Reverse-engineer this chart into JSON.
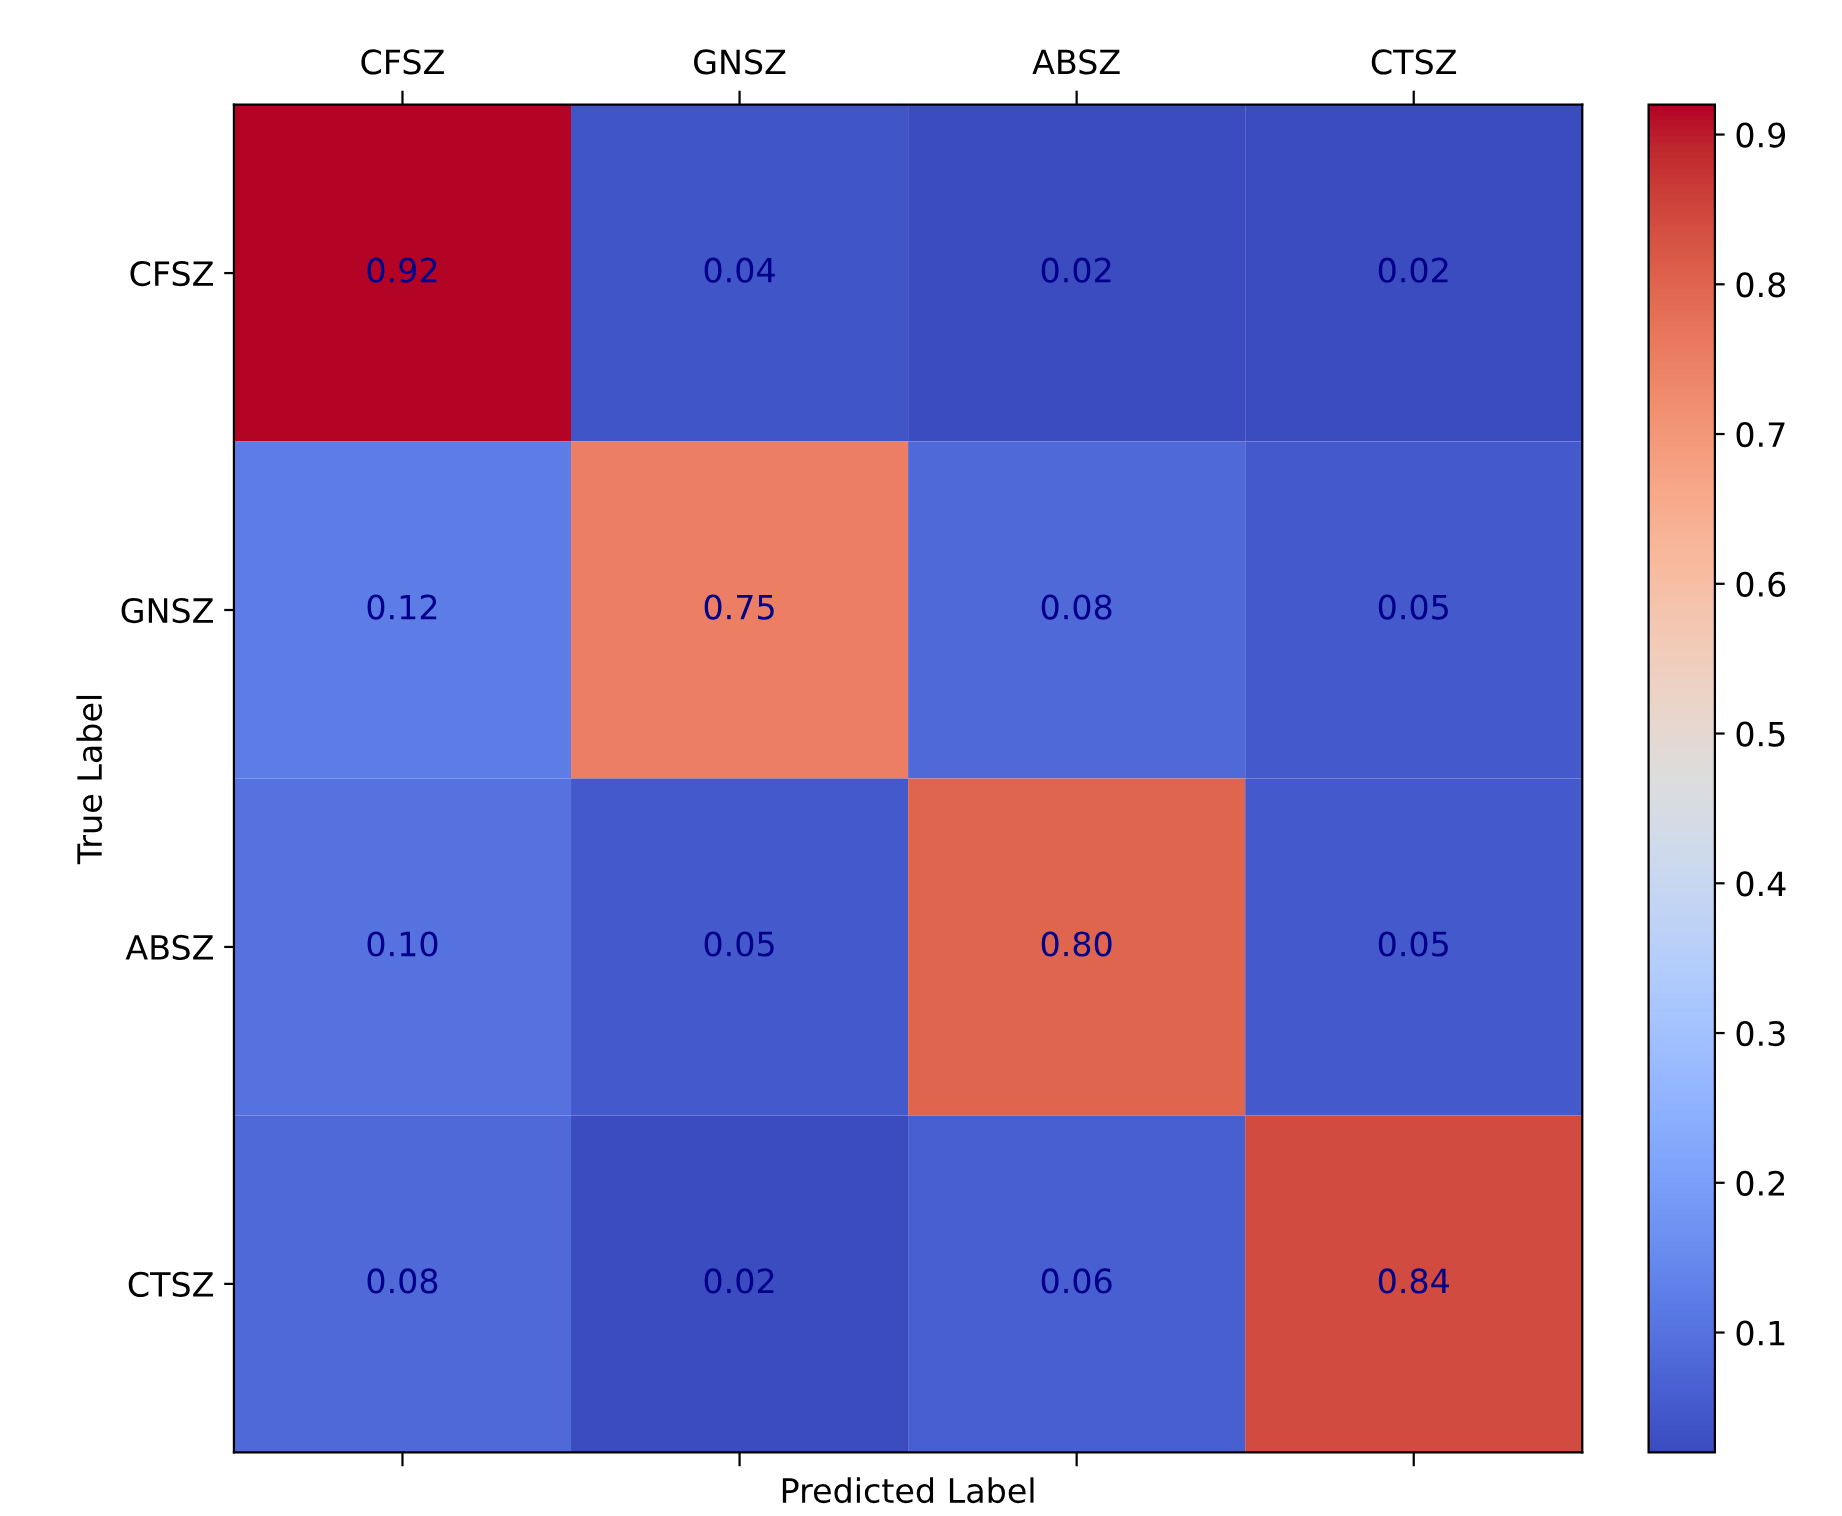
{
  "chart_data": {
    "type": "heatmap",
    "xlabel": "Predicted Label",
    "ylabel": "True Label",
    "categories": [
      "CFSZ",
      "GNSZ",
      "ABSZ",
      "CTSZ"
    ],
    "y_categories": [
      "CFSZ",
      "GNSZ",
      "ABSZ",
      "CTSZ"
    ],
    "cells": [
      [
        0.92,
        0.04,
        0.02,
        0.02
      ],
      [
        0.12,
        0.75,
        0.08,
        0.05
      ],
      [
        0.1,
        0.05,
        0.8,
        0.05
      ],
      [
        0.08,
        0.02,
        0.06,
        0.84
      ]
    ],
    "cell_labels": [
      [
        "0.92",
        "0.04",
        "0.02",
        "0.02"
      ],
      [
        "0.12",
        "0.75",
        "0.08",
        "0.05"
      ],
      [
        "0.10",
        "0.05",
        "0.80",
        "0.05"
      ],
      [
        "0.08",
        "0.02",
        "0.06",
        "0.84"
      ]
    ],
    "clim": [
      0.02,
      0.92
    ],
    "cticks": [
      0.1,
      0.2,
      0.3,
      0.4,
      0.5,
      0.6,
      0.7,
      0.8,
      0.9
    ]
  }
}
